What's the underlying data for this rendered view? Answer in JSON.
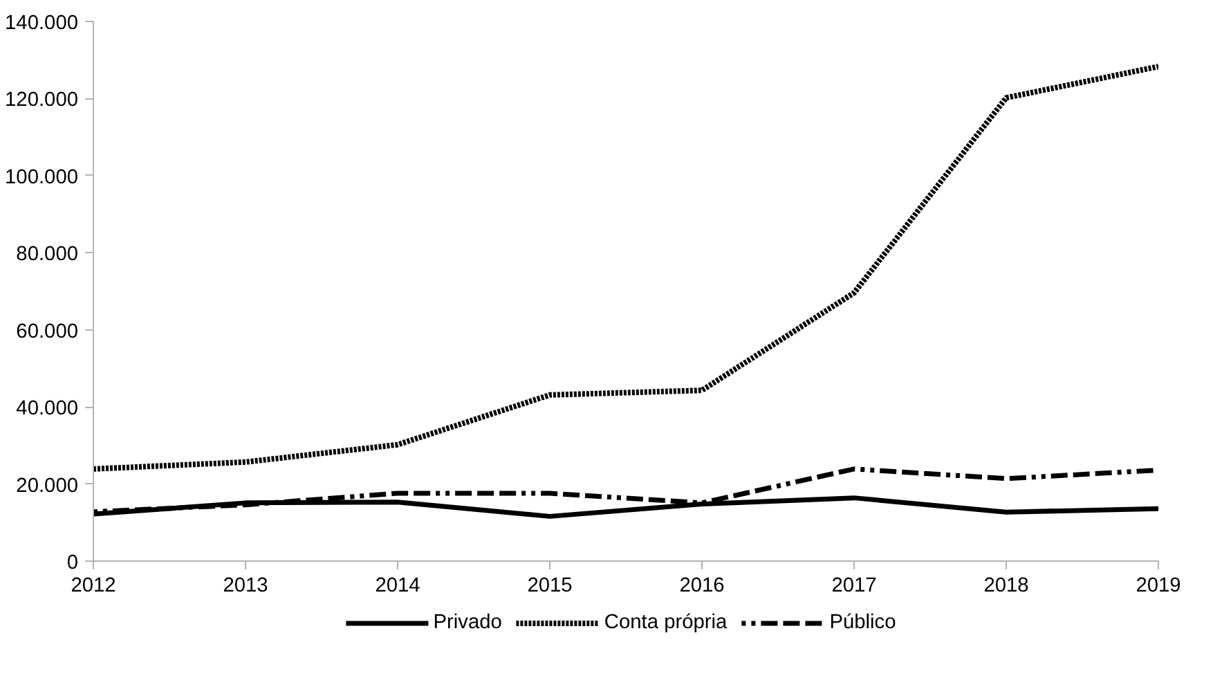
{
  "chart_data": {
    "type": "line",
    "x": [
      2012,
      2013,
      2014,
      2015,
      2016,
      2017,
      2018,
      2019
    ],
    "xlim": [
      2012,
      2019
    ],
    "xticks": [
      2012,
      2013,
      2014,
      2015,
      2016,
      2017,
      2018,
      2019
    ],
    "ylim": [
      0,
      140000
    ],
    "yticks": [
      {
        "value": 0,
        "label": "0"
      },
      {
        "value": 20000,
        "label": "20.000"
      },
      {
        "value": 40000,
        "label": "40.000"
      },
      {
        "value": 60000,
        "label": "60.000"
      },
      {
        "value": 80000,
        "label": "80.000"
      },
      {
        "value": 100000,
        "label": "100.000"
      },
      {
        "value": 120000,
        "label": "120.000"
      },
      {
        "value": 140000,
        "label": "140.000"
      }
    ],
    "grid": false,
    "legend": "bottom",
    "series": [
      {
        "name": "Privado",
        "color": "#000000",
        "line_style": "solid",
        "values": [
          12200,
          15100,
          15300,
          11600,
          14800,
          16400,
          12700,
          13600
        ]
      },
      {
        "name": "Conta própria",
        "color": "#000000",
        "line_style": "dotted",
        "values": [
          23900,
          25700,
          30200,
          43100,
          44300,
          69600,
          120200,
          128300
        ]
      },
      {
        "name": "Público",
        "color": "#000000",
        "line_style": "dashed",
        "values": [
          12800,
          14600,
          17600,
          17600,
          15100,
          23900,
          21400,
          23600
        ]
      }
    ]
  }
}
